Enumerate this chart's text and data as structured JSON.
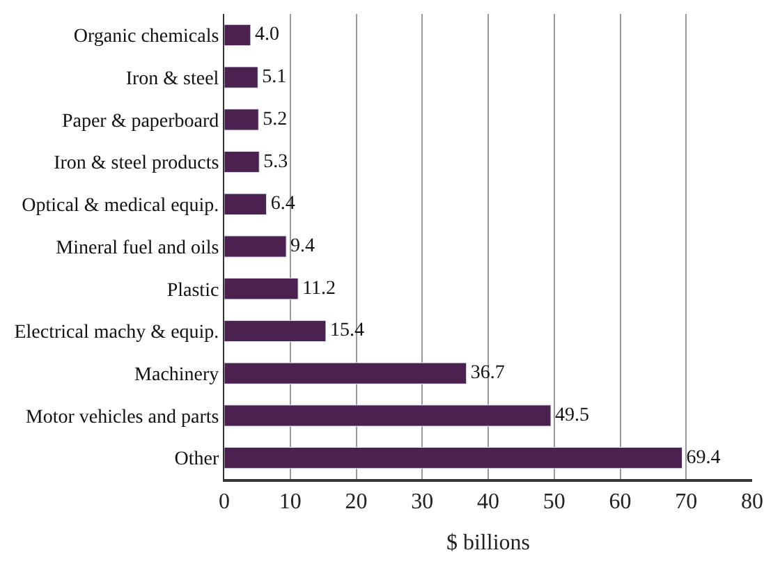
{
  "chart_data": {
    "type": "bar",
    "orientation": "horizontal",
    "xlabel": "$ billions",
    "categories": [
      "Organic chemicals",
      "Iron & steel",
      "Paper & paperboard",
      "Iron & steel products",
      "Optical & medical equip.",
      "Mineral fuel and oils",
      "Plastic",
      "Electrical machy & equip.",
      "Machinery",
      "Motor vehicles and parts",
      "Other"
    ],
    "values": [
      4.0,
      5.1,
      5.2,
      5.3,
      6.4,
      9.4,
      11.2,
      15.4,
      36.7,
      49.5,
      69.4
    ],
    "color": "#4b2150",
    "value_labels": [
      "4.0",
      "5.1",
      "5.2",
      "5.3",
      "6.4",
      "9.4",
      "11.2",
      "15.4",
      "36.7",
      "49.5",
      "69.4"
    ],
    "xlim": [
      0,
      80
    ],
    "xticks": [
      0,
      10,
      20,
      30,
      40,
      50,
      60,
      70,
      80
    ],
    "grid": "x"
  }
}
